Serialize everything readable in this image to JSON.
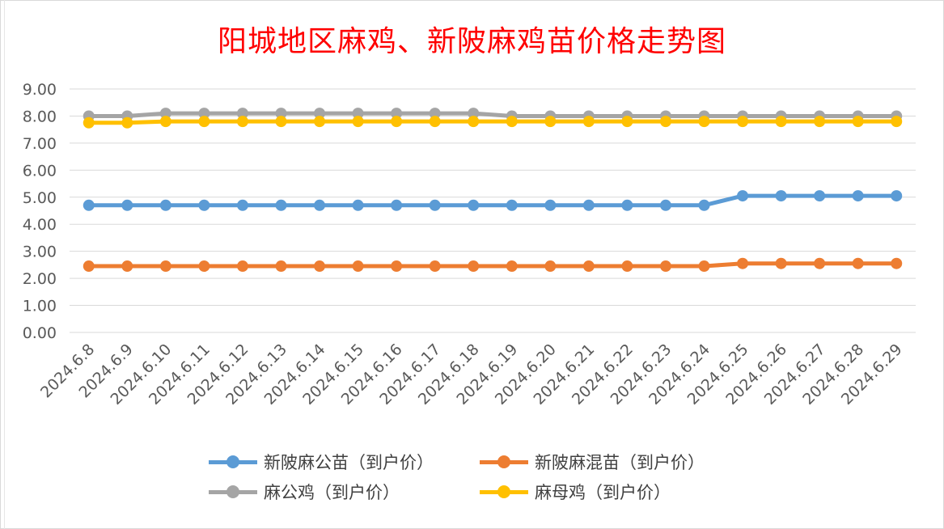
{
  "chart_data": {
    "type": "line",
    "title": "阳城地区麻鸡、新陂麻鸡苗价格走势图",
    "xlabel": "",
    "ylabel": "",
    "ylim": [
      0,
      9
    ],
    "ytick_labels": [
      "0.00",
      "1.00",
      "2.00",
      "3.00",
      "4.00",
      "5.00",
      "6.00",
      "7.00",
      "8.00",
      "9.00"
    ],
    "grid": true,
    "legend_position": "bottom",
    "categories": [
      "2024.6.8",
      "2024.6.9",
      "2024.6.10",
      "2024.6.11",
      "2024.6.12",
      "2024.6.13",
      "2024.6.14",
      "2024.6.15",
      "2024.6.16",
      "2024.6.17",
      "2024.6.18",
      "2024.6.19",
      "2024.6.20",
      "2024.6.21",
      "2024.6.22",
      "2024.6.23",
      "2024.6.24",
      "2024.6.25",
      "2024.6.26",
      "2024.6.27",
      "2024.6.28",
      "2024.6.29"
    ],
    "series": [
      {
        "name": "新陂麻公苗（到户价）",
        "color": "#5b9bd5",
        "values": [
          4.7,
          4.7,
          4.7,
          4.7,
          4.7,
          4.7,
          4.7,
          4.7,
          4.7,
          4.7,
          4.7,
          4.7,
          4.7,
          4.7,
          4.7,
          4.7,
          4.7,
          5.05,
          5.05,
          5.05,
          5.05,
          5.05
        ]
      },
      {
        "name": "新陂麻混苗（到户价）",
        "color": "#ed7d31",
        "values": [
          2.45,
          2.45,
          2.45,
          2.45,
          2.45,
          2.45,
          2.45,
          2.45,
          2.45,
          2.45,
          2.45,
          2.45,
          2.45,
          2.45,
          2.45,
          2.45,
          2.45,
          2.55,
          2.55,
          2.55,
          2.55,
          2.55
        ]
      },
      {
        "name": "麻公鸡（到户价）",
        "color": "#a5a5a5",
        "values": [
          8.0,
          8.0,
          8.1,
          8.1,
          8.1,
          8.1,
          8.1,
          8.1,
          8.1,
          8.1,
          8.1,
          8.0,
          8.0,
          8.0,
          8.0,
          8.0,
          8.0,
          8.0,
          8.0,
          8.0,
          8.0,
          8.0
        ]
      },
      {
        "name": "麻母鸡（到户价）",
        "color": "#ffc000",
        "values": [
          7.75,
          7.75,
          7.8,
          7.8,
          7.8,
          7.8,
          7.8,
          7.8,
          7.8,
          7.8,
          7.8,
          7.8,
          7.8,
          7.8,
          7.8,
          7.8,
          7.8,
          7.8,
          7.8,
          7.8,
          7.8,
          7.8
        ]
      }
    ]
  }
}
